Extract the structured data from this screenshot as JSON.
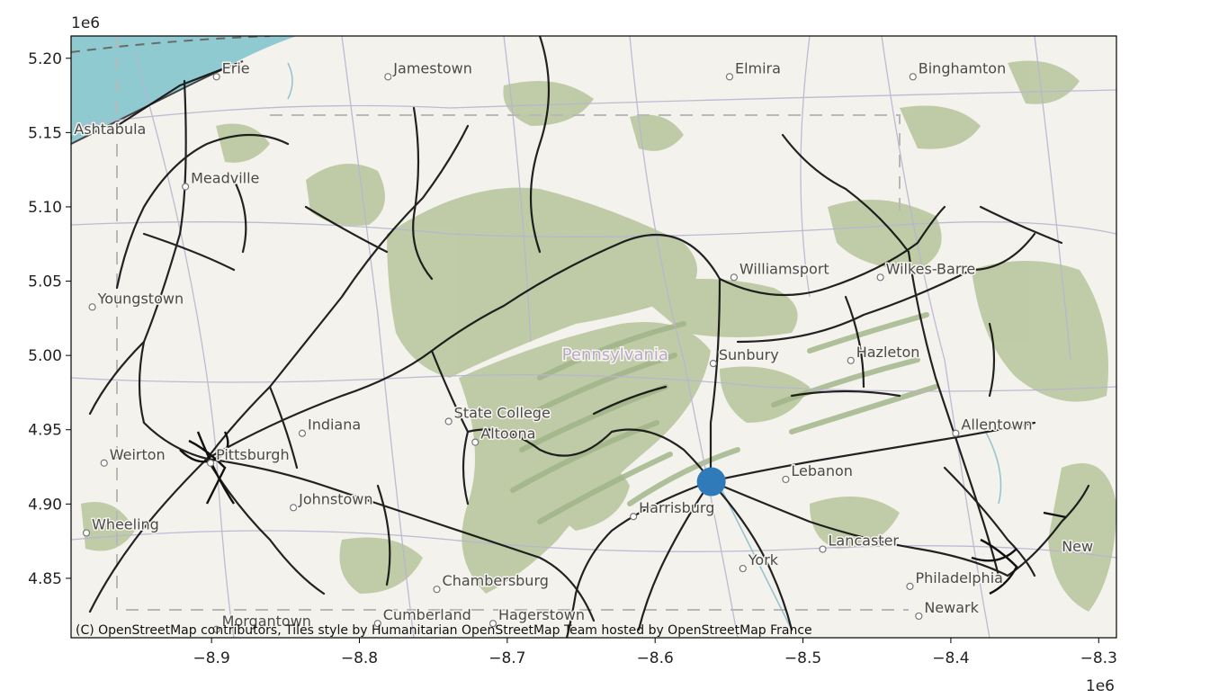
{
  "map": {
    "attribution": "(C) OpenStreetMap contributors, Tiles style by Humanitarian OpenStreetMap Team hosted by OpenStreetMap France",
    "x_offset_label": "1e6",
    "y_offset_label": "1e6",
    "colors": {
      "land": "#f4f2ec",
      "forest": "#b6c59c",
      "forest_dark": "#9fb386",
      "water": "#8fcad1",
      "rail": "#111111",
      "marker": "#2f7ab8",
      "roads": "#b8b4d2"
    },
    "marker": {
      "x": -8.562,
      "y": 4.915
    },
    "cities": [
      {
        "name": "Erie",
        "x": -8.893,
        "y": 5.19
      },
      {
        "name": "Jamestown",
        "x": -8.777,
        "y": 5.19
      },
      {
        "name": "Elmira",
        "x": -8.546,
        "y": 5.19
      },
      {
        "name": "Binghamton",
        "x": -8.422,
        "y": 5.19
      },
      {
        "name": "Ashtabula",
        "x": -8.993,
        "y": 5.149
      },
      {
        "name": "Meadville",
        "x": -8.914,
        "y": 5.116
      },
      {
        "name": "Williamsport",
        "x": -8.543,
        "y": 5.055
      },
      {
        "name": "Wilkes-Barre",
        "x": -8.444,
        "y": 5.055
      },
      {
        "name": "Youngstown",
        "x": -8.977,
        "y": 5.035
      },
      {
        "name": "Pennsylvania",
        "x": -8.663,
        "y": 4.997
      },
      {
        "name": "Hazleton",
        "x": -8.464,
        "y": 4.999
      },
      {
        "name": "Sunbury",
        "x": -8.557,
        "y": 4.997
      },
      {
        "name": "State College",
        "x": -8.736,
        "y": 4.958
      },
      {
        "name": "Indiana",
        "x": -8.835,
        "y": 4.95
      },
      {
        "name": "Allentown",
        "x": -8.393,
        "y": 4.95
      },
      {
        "name": "Altoona",
        "x": -8.718,
        "y": 4.944
      },
      {
        "name": "Weirton",
        "x": -8.969,
        "y": 4.93
      },
      {
        "name": "Pittsburgh",
        "x": -8.897,
        "y": 4.93
      },
      {
        "name": "Lebanon",
        "x": -8.508,
        "y": 4.919
      },
      {
        "name": "Johnstown",
        "x": -8.841,
        "y": 4.9
      },
      {
        "name": "Harrisburg",
        "x": -8.611,
        "y": 4.894
      },
      {
        "name": "Wheeling",
        "x": -8.981,
        "y": 4.883
      },
      {
        "name": "Lancaster",
        "x": -8.483,
        "y": 4.872
      },
      {
        "name": "York",
        "x": -8.537,
        "y": 4.859
      },
      {
        "name": "Chambersburg",
        "x": -8.744,
        "y": 4.845
      },
      {
        "name": "Philadelphia",
        "x": -8.424,
        "y": 4.847
      },
      {
        "name": "New",
        "x": -8.325,
        "y": 4.868
      },
      {
        "name": "Newark",
        "x": -8.418,
        "y": 4.827
      },
      {
        "name": "Cumberland",
        "x": -8.784,
        "y": 4.822
      },
      {
        "name": "Hagerstown",
        "x": -8.706,
        "y": 4.822
      },
      {
        "name": "Morgantown",
        "x": -8.893,
        "y": 4.818
      }
    ]
  },
  "axes": {
    "xlim": [
      -8.995,
      -8.288
    ],
    "ylim": [
      4.81,
      5.215
    ],
    "x_ticks": [
      -8.9,
      -8.8,
      -8.7,
      -8.6,
      -8.5,
      -8.4,
      -8.3
    ],
    "x_tick_labels": [
      "−8.9",
      "−8.8",
      "−8.7",
      "−8.6",
      "−8.5",
      "−8.4",
      "−8.3"
    ],
    "y_ticks": [
      4.85,
      4.9,
      4.95,
      5.0,
      5.05,
      5.1,
      5.15,
      5.2
    ],
    "y_tick_labels": [
      "4.85",
      "4.90",
      "4.95",
      "5.00",
      "5.05",
      "5.10",
      "5.15",
      "5.20"
    ]
  }
}
